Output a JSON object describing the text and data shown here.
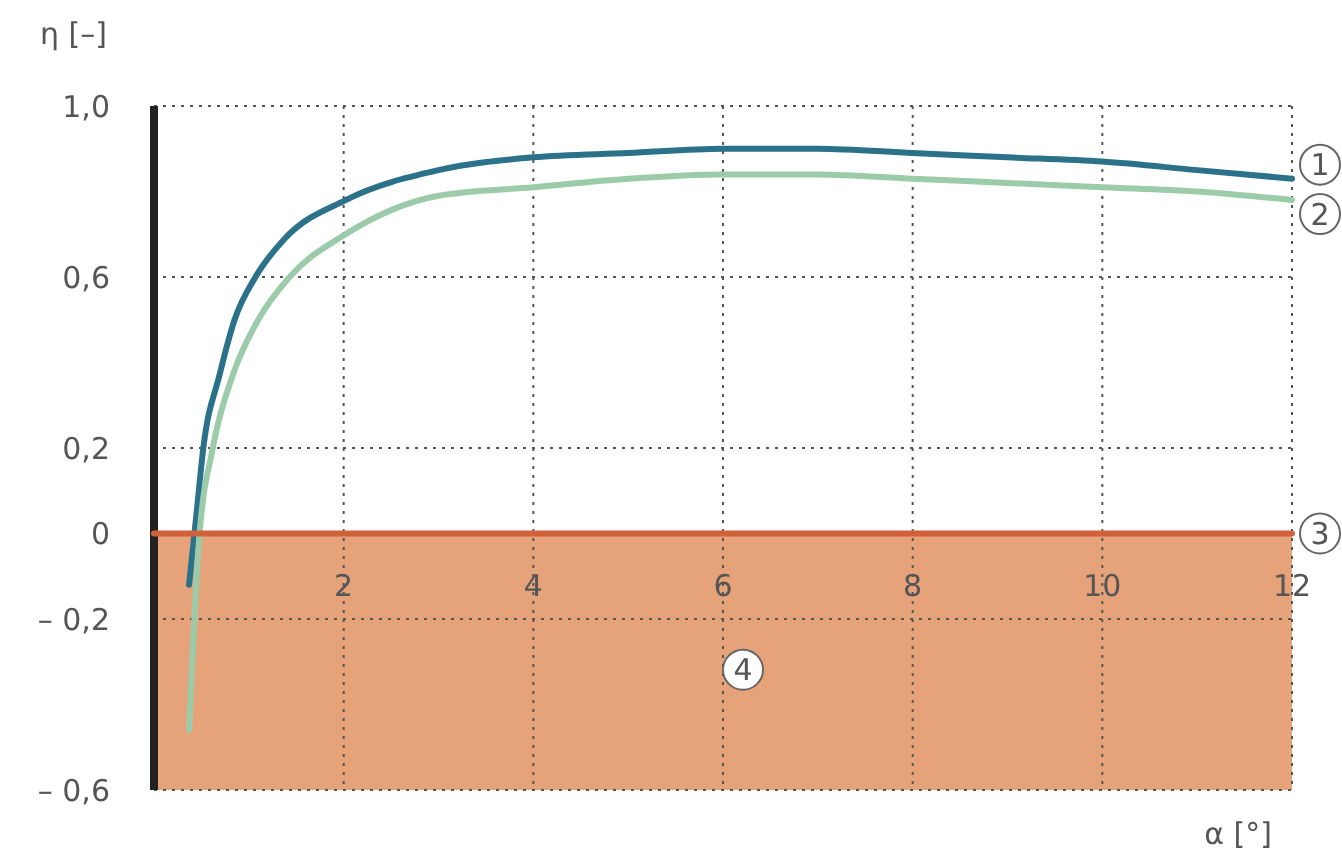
{
  "chart_data": {
    "type": "line",
    "xlabel": "α [°]",
    "ylabel": "η [–]",
    "xlim": [
      0,
      12
    ],
    "xticks": [
      2,
      4,
      6,
      8,
      10,
      12
    ],
    "ylim": [
      -0.6,
      1.0
    ],
    "yticks": [
      {
        "value": 1.0,
        "label": "1,0"
      },
      {
        "value": 0.6,
        "label": "0,6"
      },
      {
        "value": 0.2,
        "label": "0,2"
      },
      {
        "value": 0,
        "label": "0"
      },
      {
        "value": -0.2,
        "label": "– 0,2"
      },
      {
        "value": -0.6,
        "label": "– 0,6"
      }
    ],
    "grid": true,
    "line_style": "solid",
    "marker": "none",
    "series": [
      {
        "name": "1",
        "color": "#2b7189",
        "x": [
          0.37,
          0.45,
          0.52,
          0.69,
          0.85,
          1.07,
          1.38,
          2.02,
          3.0,
          4.0,
          5.0,
          6.0,
          7.0,
          8.0,
          9.0,
          10.0,
          11.0,
          12.0
        ],
        "values": [
          -0.12,
          0.05,
          0.2,
          0.37,
          0.5,
          0.6,
          0.69,
          0.78,
          0.85,
          0.88,
          0.89,
          0.9,
          0.9,
          0.89,
          0.88,
          0.87,
          0.85,
          0.83
        ]
      },
      {
        "name": "2",
        "color": "#9ccbaa",
        "x": [
          0.37,
          0.47,
          0.62,
          0.83,
          1.1,
          1.43,
          2.02,
          3.0,
          4.0,
          5.0,
          6.0,
          7.0,
          8.0,
          9.0,
          10.0,
          11.0,
          12.0
        ],
        "values": [
          -0.46,
          -0.03,
          0.2,
          0.37,
          0.5,
          0.6,
          0.7,
          0.79,
          0.81,
          0.83,
          0.84,
          0.84,
          0.83,
          0.82,
          0.81,
          0.8,
          0.78
        ]
      },
      {
        "name": "3",
        "color": "#d0613a",
        "x": [
          0,
          12
        ],
        "values": [
          0,
          0
        ]
      }
    ],
    "bands": [
      {
        "axis": "y",
        "from": -0.6,
        "to": 0,
        "label": "4",
        "color": "#e6a37a"
      }
    ]
  }
}
